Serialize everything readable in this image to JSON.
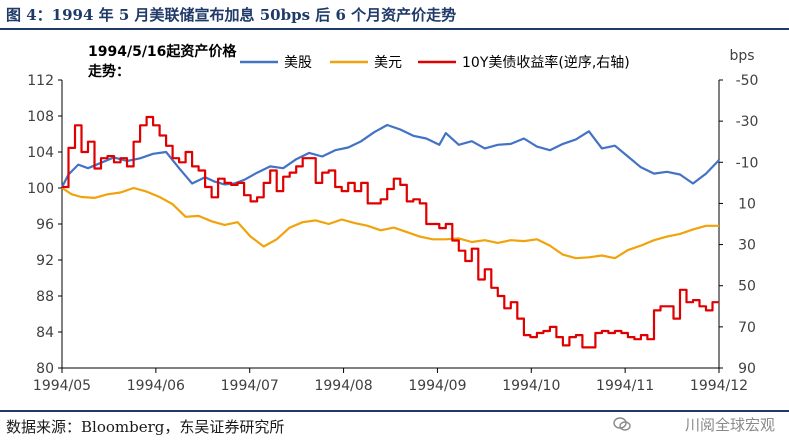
{
  "header": {
    "title": "图 4：1994 年 5 月美联储宣布加息 50bps 后 6 个月资产价走势"
  },
  "footer": {
    "source": "数据来源：Bloomberg，东吴证券研究所",
    "watermark": "川阅全球宏观"
  },
  "colors": {
    "header_rule": "#1f3a68",
    "stock": "#4472c4",
    "dollar": "#f0a30a",
    "yield": "#e00000",
    "axis": "#000000"
  },
  "chart_data": {
    "type": "line",
    "annotation": "1994/5/16起资产价格走势：",
    "right_axis_unit": "bps",
    "xticks": [
      "1994/05",
      "1994/06",
      "1994/07",
      "1994/08",
      "1994/09",
      "1994/10",
      "1994/11",
      "1994/12"
    ],
    "left_axis": {
      "ticks": [
        80,
        84,
        88,
        92,
        96,
        100,
        104,
        108,
        112
      ],
      "ylim": [
        80,
        112
      ]
    },
    "right_axis": {
      "ticks": [
        -50,
        -30,
        -10,
        10,
        30,
        50,
        70,
        90
      ],
      "ylim": [
        90,
        -50
      ],
      "inverted": true
    },
    "x_range_days": [
      0,
      202
    ],
    "x_unit": "days since 1994/05/16",
    "legend": {
      "placement": "top",
      "labels": [
        "美股",
        "美元",
        "10Y美债收益率(逆序,右轴)"
      ]
    },
    "grid": false,
    "series": [
      {
        "name": "美股",
        "axis": "left",
        "color": "#4472c4",
        "x": [
          0,
          2,
          5,
          8,
          12,
          16,
          20,
          24,
          28,
          32,
          36,
          40,
          44,
          47,
          50,
          53,
          56,
          60,
          64,
          68,
          72,
          76,
          80,
          84,
          88,
          92,
          96,
          100,
          104,
          108,
          112,
          116,
          118,
          122,
          126,
          130,
          134,
          138,
          142,
          146,
          150,
          154,
          158,
          162,
          166,
          170,
          174,
          178,
          182,
          186,
          190,
          194,
          198,
          202
        ],
        "y": [
          100.1,
          101.5,
          102.6,
          102.2,
          102.8,
          103.4,
          103.0,
          103.3,
          103.8,
          104.0,
          102.2,
          100.5,
          101.2,
          100.7,
          100.4,
          100.5,
          100.9,
          101.7,
          102.4,
          102.2,
          103.2,
          103.9,
          103.5,
          104.2,
          104.5,
          105.2,
          106.2,
          107.0,
          106.5,
          105.8,
          105.5,
          104.8,
          106.1,
          104.8,
          105.2,
          104.4,
          104.8,
          104.9,
          105.5,
          104.6,
          104.2,
          104.9,
          105.4,
          106.3,
          104.4,
          104.7,
          103.5,
          102.3,
          101.6,
          101.8,
          101.5,
          100.5,
          101.6,
          103.1
        ]
      },
      {
        "name": "美元",
        "axis": "left",
        "color": "#f0a30a",
        "x": [
          0,
          3,
          6,
          10,
          14,
          18,
          22,
          26,
          30,
          34,
          38,
          42,
          46,
          50,
          54,
          58,
          62,
          66,
          70,
          74,
          78,
          82,
          86,
          90,
          94,
          98,
          102,
          106,
          110,
          114,
          118,
          122,
          126,
          130,
          134,
          138,
          142,
          146,
          150,
          154,
          158,
          162,
          166,
          170,
          174,
          178,
          182,
          186,
          190,
          194,
          198,
          202
        ],
        "y": [
          100.0,
          99.3,
          99.0,
          98.9,
          99.3,
          99.5,
          100.0,
          99.6,
          99.0,
          98.2,
          96.8,
          96.9,
          96.3,
          95.9,
          96.2,
          94.6,
          93.5,
          94.3,
          95.6,
          96.2,
          96.4,
          96.0,
          96.5,
          96.1,
          95.8,
          95.3,
          95.6,
          95.1,
          94.6,
          94.3,
          94.3,
          94.4,
          94.0,
          94.2,
          93.9,
          94.2,
          94.1,
          94.3,
          93.6,
          92.6,
          92.2,
          92.3,
          92.5,
          92.2,
          93.1,
          93.6,
          94.2,
          94.6,
          94.9,
          95.4,
          95.8,
          95.8
        ]
      },
      {
        "name": "10Y美债收益率(逆序,右轴)",
        "axis": "right",
        "color": "#e00000",
        "x": [
          0,
          2,
          4,
          6,
          8,
          10,
          12,
          14,
          16,
          18,
          20,
          22,
          24,
          26,
          28,
          30,
          32,
          34,
          36,
          38,
          40,
          42,
          44,
          46,
          48,
          50,
          52,
          54,
          56,
          58,
          60,
          62,
          64,
          66,
          68,
          70,
          72,
          74,
          76,
          78,
          80,
          82,
          84,
          86,
          88,
          90,
          92,
          94,
          96,
          98,
          100,
          102,
          104,
          106,
          108,
          110,
          112,
          114,
          116,
          118,
          120,
          122,
          124,
          126,
          128,
          130,
          132,
          134,
          136,
          138,
          140,
          142,
          144,
          146,
          148,
          150,
          152,
          154,
          156,
          158,
          160,
          162,
          164,
          166,
          168,
          170,
          172,
          174,
          176,
          178,
          180,
          182,
          184,
          186,
          188,
          190,
          192,
          194,
          196,
          198,
          200,
          202
        ],
        "y": [
          2,
          -17,
          -28,
          -15,
          -20,
          -7,
          -12,
          -13,
          -10,
          -12,
          -8,
          -20,
          -28,
          -32,
          -28,
          -23,
          -18,
          -12,
          -10,
          -15,
          -8,
          -6,
          2,
          7,
          -2,
          0,
          1,
          0,
          6,
          9,
          7,
          0,
          -6,
          4,
          -3,
          -5,
          -8,
          -12,
          -12,
          0,
          -5,
          -6,
          2,
          4,
          0,
          4,
          0,
          10,
          10,
          8,
          3,
          -2,
          1,
          9,
          8,
          10,
          20,
          20,
          22,
          20,
          28,
          33,
          38,
          32,
          47,
          42,
          51,
          55,
          61,
          58,
          66,
          74,
          75,
          73,
          72,
          70,
          75,
          79,
          75,
          74,
          80,
          80,
          73,
          72,
          73,
          72,
          73,
          75,
          76,
          74,
          76,
          62,
          60,
          60,
          66,
          52,
          58,
          57,
          60,
          62,
          58,
          58
        ]
      }
    ]
  }
}
